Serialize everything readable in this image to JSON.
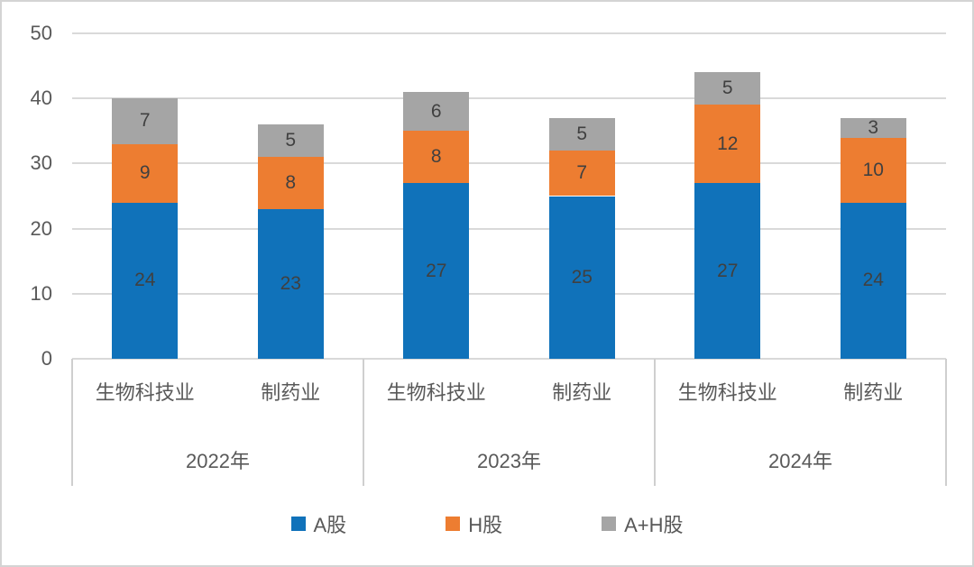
{
  "chart_data": {
    "type": "bar",
    "stacked": true,
    "title": "",
    "xlabel": "",
    "ylabel": "",
    "ylim": [
      0,
      50
    ],
    "yticks": [
      0,
      10,
      20,
      30,
      40,
      50
    ],
    "grid": true,
    "legend_position": "bottom",
    "year_groups": [
      {
        "label": "2022年",
        "categories": [
          "生物科技业",
          "制药业"
        ]
      },
      {
        "label": "2023年",
        "categories": [
          "生物科技业",
          "制药业"
        ]
      },
      {
        "label": "2024年",
        "categories": [
          "生物科技业",
          "制药业"
        ]
      }
    ],
    "categories": [
      "生物科技业",
      "制药业",
      "生物科技业",
      "制药业",
      "生物科技业",
      "制药业"
    ],
    "series": [
      {
        "name": "A股",
        "color": "#1072BA",
        "values": [
          24,
          23,
          27,
          25,
          27,
          24
        ]
      },
      {
        "name": "H股",
        "color": "#ED7D31",
        "values": [
          9,
          8,
          8,
          7,
          12,
          10
        ]
      },
      {
        "name": "A+H股",
        "color": "#A5A5A5",
        "values": [
          7,
          5,
          6,
          5,
          5,
          3
        ]
      }
    ],
    "totals": [
      40,
      36,
      41,
      37,
      44,
      37
    ],
    "colors": {
      "axis_text": "#595959",
      "bar_label": "#404040",
      "gridline": "#D9D9D9",
      "divider": "#CFCFCF"
    }
  }
}
